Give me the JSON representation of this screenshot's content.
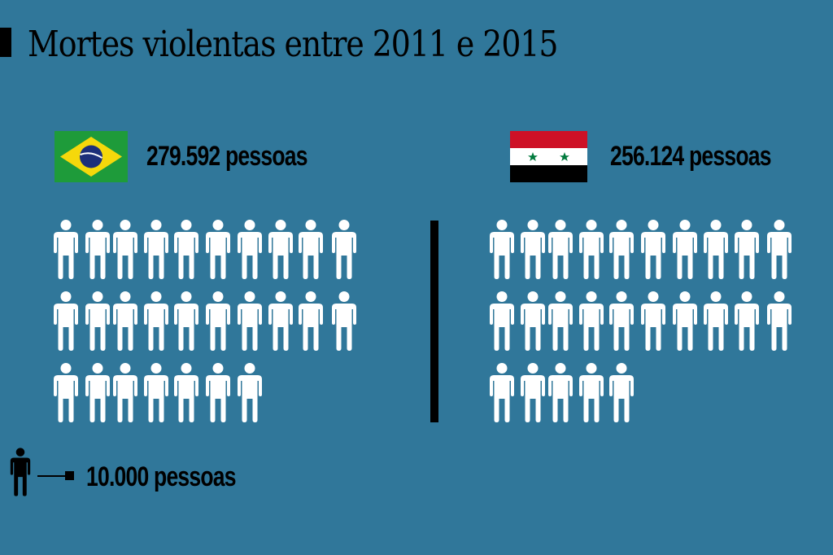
{
  "title": "Mortes violentas entre 2011 e 2015",
  "colors": {
    "background": "#30779a",
    "icon": "#ffffff",
    "text": "#000000"
  },
  "countries": [
    {
      "name": "Brasil",
      "flag": "brazil-flag",
      "label": "279.592 pessoas",
      "icons": 27
    },
    {
      "name": "Síria",
      "flag": "syria-flag",
      "label": "256.124 pessoas",
      "icons": 25
    }
  ],
  "legend": {
    "icon": "person-icon",
    "label": "10.000 pessoas"
  },
  "chart_data": {
    "type": "pictogram",
    "title": "Mortes violentas entre 2011 e 2015",
    "categories": [
      "Brasil",
      "Síria"
    ],
    "values": [
      279592,
      256124
    ],
    "value_labels": [
      "279.592 pessoas",
      "256.124 pessoas"
    ],
    "icons_per_category": [
      27,
      25
    ],
    "icons_per_row": 10,
    "unit": "1 ícone = 10.000 pessoas",
    "legend": "10.000 pessoas"
  }
}
